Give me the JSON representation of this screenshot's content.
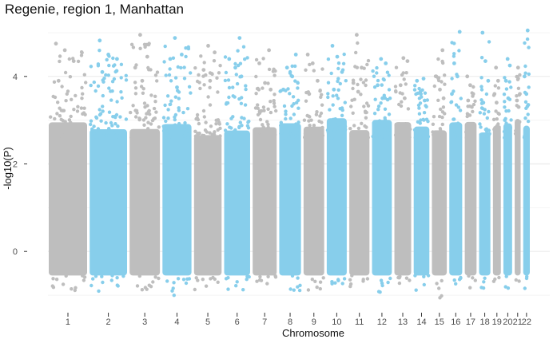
{
  "chart_data": {
    "type": "scatter",
    "title": "Regenie, region 1, Manhattan",
    "xlabel": "Chromosome",
    "ylabel": "-log10(P)",
    "ylim": [
      -1.4,
      5.2
    ],
    "y_ticks": [
      0,
      2,
      4
    ],
    "grid": true,
    "legend": "none",
    "colors": [
      "#bebebe",
      "#87ceeb"
    ],
    "chromosomes": [
      {
        "label": "1",
        "color": "#bebebe",
        "max": 4.75,
        "top_hits": [
          4.75,
          4.6,
          4.35,
          3.9
        ]
      },
      {
        "label": "2",
        "color": "#87ceeb",
        "max": 4.82,
        "top_hits": [
          4.82,
          4.5,
          4.4,
          4.1
        ]
      },
      {
        "label": "3",
        "color": "#bebebe",
        "max": 4.95,
        "top_hits": [
          4.95,
          4.45,
          4.2,
          3.9
        ]
      },
      {
        "label": "4",
        "color": "#87ceeb",
        "max": 4.88,
        "top_hits": [
          4.88,
          4.5,
          4.4,
          3.75
        ]
      },
      {
        "label": "5",
        "color": "#bebebe",
        "max": 4.7,
        "top_hits": [
          4.7,
          4.55,
          4.15,
          3.9
        ]
      },
      {
        "label": "6",
        "color": "#87ceeb",
        "max": 4.88,
        "top_hits": [
          4.88,
          4.4,
          4.2,
          4.0
        ]
      },
      {
        "label": "7",
        "color": "#bebebe",
        "max": 4.6,
        "top_hits": [
          4.6,
          4.3,
          3.85,
          3.7
        ]
      },
      {
        "label": "8",
        "color": "#87ceeb",
        "max": 4.5,
        "top_hits": [
          4.5,
          4.2,
          4.0,
          3.7
        ]
      },
      {
        "label": "9",
        "color": "#bebebe",
        "max": 4.5,
        "top_hits": [
          4.5,
          4.3,
          3.9,
          3.6
        ]
      },
      {
        "label": "10",
        "color": "#87ceeb",
        "max": 4.7,
        "top_hits": [
          4.7,
          4.45,
          4.1,
          3.7
        ]
      },
      {
        "label": "11",
        "color": "#bebebe",
        "max": 4.95,
        "top_hits": [
          4.95,
          4.2,
          3.85,
          3.65
        ]
      },
      {
        "label": "12",
        "color": "#87ceeb",
        "max": 4.4,
        "top_hits": [
          4.4,
          4.3,
          3.8,
          3.5
        ]
      },
      {
        "label": "13",
        "color": "#bebebe",
        "max": 4.42,
        "top_hits": [
          4.42,
          4.35,
          3.8,
          3.5
        ]
      },
      {
        "label": "14",
        "color": "#87ceeb",
        "max": 3.95,
        "top_hits": [
          3.95,
          3.9,
          3.6,
          3.45
        ]
      },
      {
        "label": "15",
        "color": "#bebebe",
        "max": 4.6,
        "top_hits": [
          4.6,
          4.0,
          3.7,
          3.5
        ]
      },
      {
        "label": "16",
        "color": "#87ceeb",
        "max": 5.02,
        "top_hits": [
          5.02,
          4.3,
          4.0,
          3.6
        ]
      },
      {
        "label": "17",
        "color": "#bebebe",
        "max": 4.0,
        "top_hits": [
          4.0,
          3.8,
          3.6,
          3.45
        ]
      },
      {
        "label": "18",
        "color": "#87ceeb",
        "max": 5.0,
        "top_hits": [
          5.0,
          4.35,
          3.9,
          3.4
        ]
      },
      {
        "label": "19",
        "color": "#bebebe",
        "max": 4.2,
        "top_hits": [
          4.2,
          3.9,
          3.6,
          3.4
        ]
      },
      {
        "label": "20",
        "color": "#87ceeb",
        "max": 4.4,
        "top_hits": [
          4.4,
          4.25,
          3.9,
          3.5
        ]
      },
      {
        "label": "21",
        "color": "#bebebe",
        "max": 4.2,
        "top_hits": [
          4.2,
          3.6,
          3.45,
          3.3
        ]
      },
      {
        "label": "22",
        "color": "#87ceeb",
        "max": 5.05,
        "top_hits": [
          5.05,
          4.0,
          3.6,
          3.35
        ]
      }
    ]
  }
}
